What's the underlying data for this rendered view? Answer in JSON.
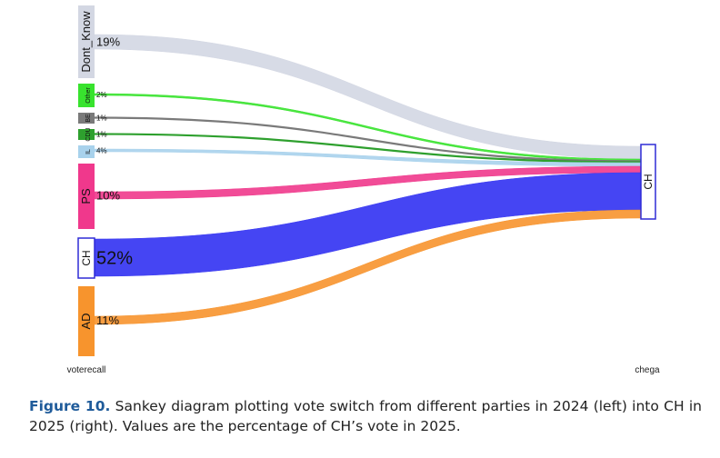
{
  "chart_data": {
    "type": "sankey",
    "left_axis_label": "voterecall",
    "right_axis_label": "chega",
    "target": {
      "name": "CH",
      "color": "#2e2bd6"
    },
    "sources": [
      {
        "name": "Dont_Know",
        "pct_label": "19%",
        "value": 19,
        "color": "#d3d7e3",
        "label_size": "big"
      },
      {
        "name": "Other",
        "pct_label": "2%",
        "value": 2,
        "color": "#38e32e",
        "label_size": "small"
      },
      {
        "name": "BE",
        "pct_label": "1%",
        "value": 1,
        "color": "#7a7a7a",
        "label_size": "small"
      },
      {
        "name": "CDU",
        "pct_label": "1%",
        "value": 1,
        "color": "#2ea02e",
        "label_size": "small"
      },
      {
        "name": "IL",
        "pct_label": "4%",
        "value": 4,
        "color": "#a8d2ec",
        "label_size": "small"
      },
      {
        "name": "PS",
        "pct_label": "10%",
        "value": 10,
        "color": "#f0388c",
        "label_size": "big"
      },
      {
        "name": "CH",
        "pct_label": "52%",
        "value": 52,
        "color": "#3b3bf2",
        "label_size": "huge"
      },
      {
        "name": "AD",
        "pct_label": "11%",
        "value": 11,
        "color": "#f7942d",
        "label_size": "big"
      }
    ]
  },
  "caption": {
    "figure_label": "Figure 10.",
    "text": " Sankey diagram plotting vote switch from different parties in 2024 (left) into CH in 2025 (right). Values are the percentage of CH’s vote in 2025."
  }
}
